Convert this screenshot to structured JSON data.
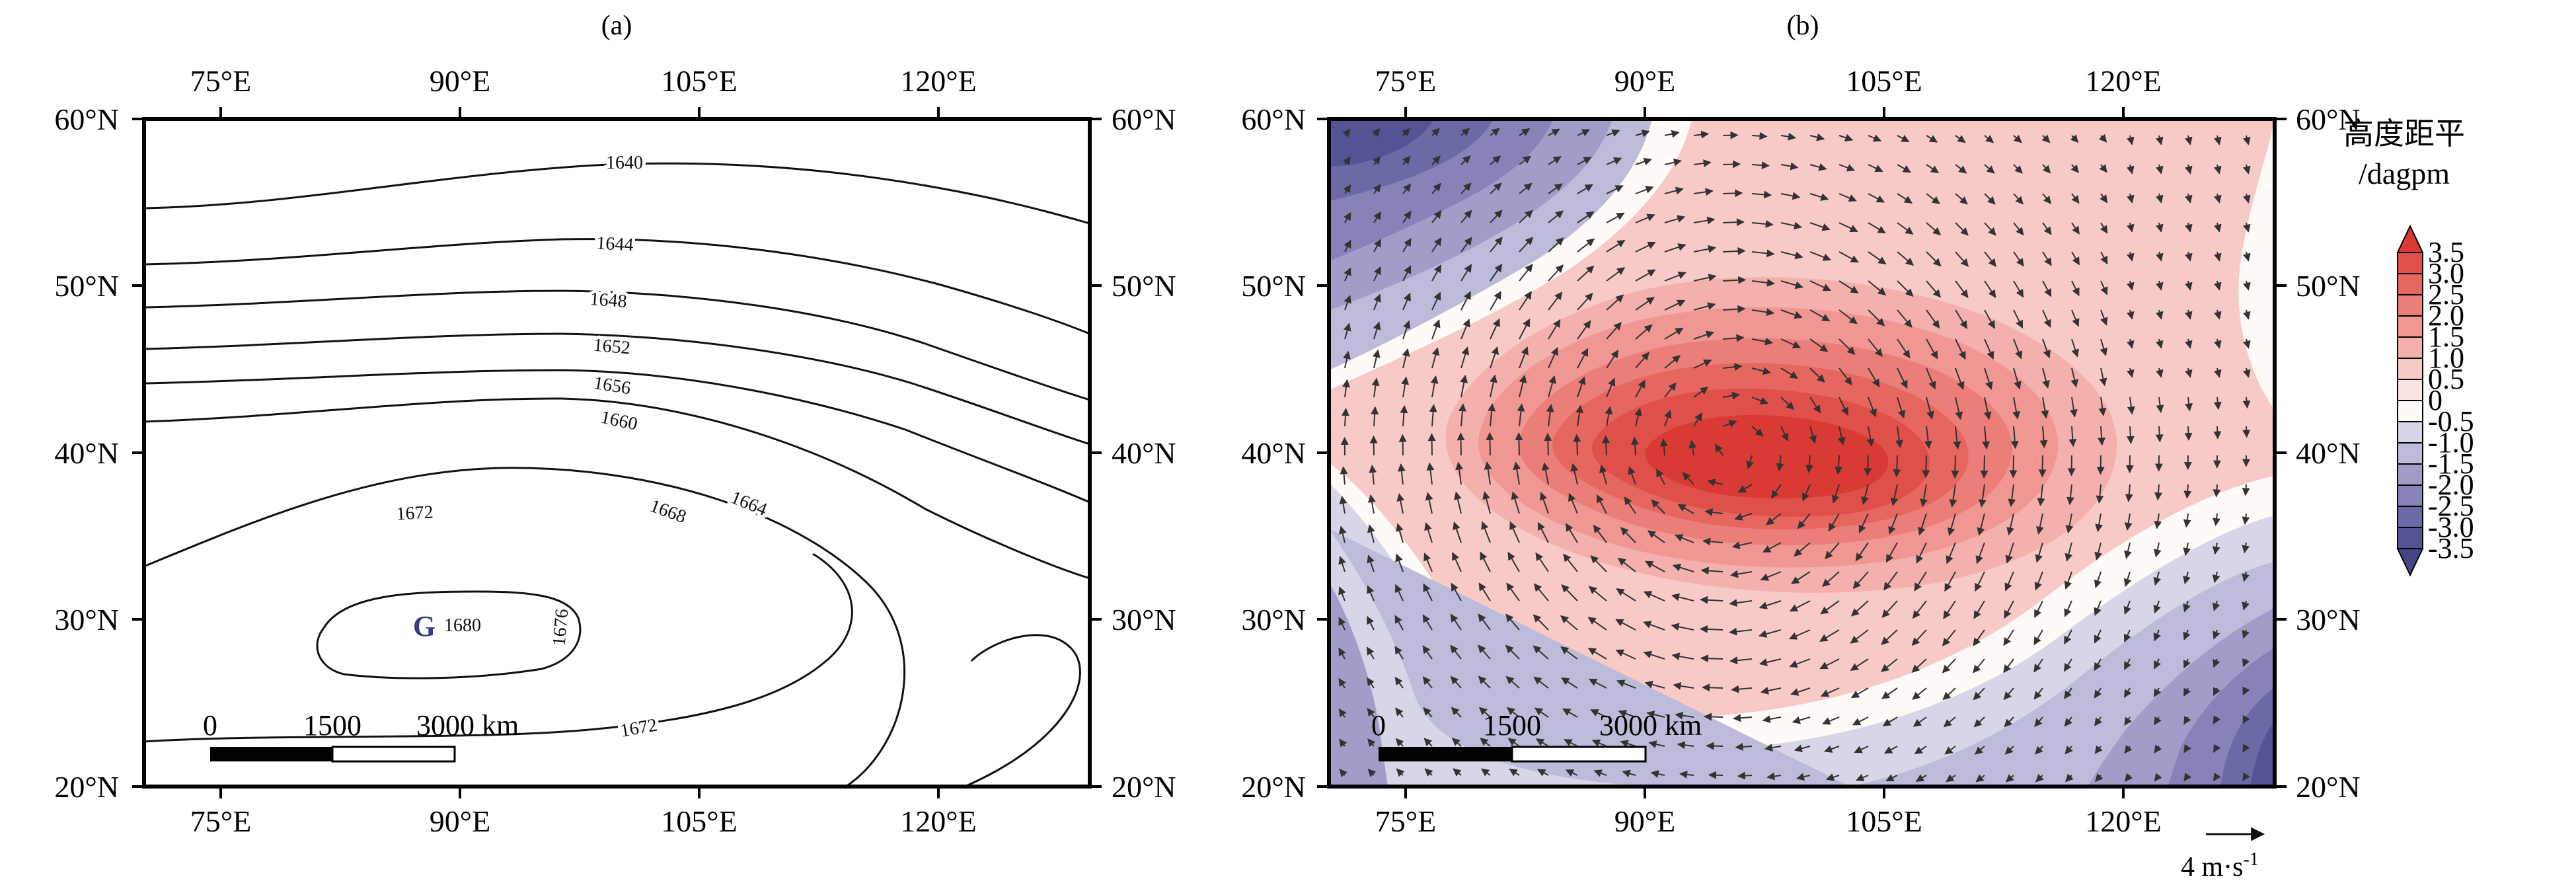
{
  "panels": {
    "a": {
      "label": "(a)",
      "lon_ticks": [
        "75°E",
        "90°E",
        "105°E",
        "120°E"
      ],
      "lat_ticks": [
        "60°N",
        "50°N",
        "40°N",
        "30°N",
        "20°N"
      ],
      "contour_labels": [
        "1640",
        "1644",
        "1648",
        "1652",
        "1656",
        "1660",
        "1664",
        "1668",
        "1672",
        "1672",
        "1676",
        "1680"
      ],
      "high_marker": "G",
      "scale_bar": {
        "labels": [
          "0",
          "1500",
          "3000 km"
        ]
      }
    },
    "b": {
      "label": "(b)",
      "lon_ticks": [
        "75°E",
        "90°E",
        "105°E",
        "120°E"
      ],
      "lat_ticks": [
        "60°N",
        "50°N",
        "40°N",
        "30°N",
        "20°N"
      ],
      "scale_bar": {
        "labels": [
          "0",
          "1500",
          "3000 km"
        ]
      },
      "ref_vector": {
        "label": "4 m·s",
        "exp": "-1"
      },
      "colorbar": {
        "title": "高度距平",
        "unit": "/dagpm",
        "tick_labels": [
          "3.5",
          "3.0",
          "2.5",
          "2.0",
          "1.5",
          "1.0",
          "0.5",
          "0",
          "-0.5",
          "-1.0",
          "-1.5",
          "-2.0",
          "-2.5",
          "-3.0",
          "-3.5"
        ],
        "colors_top_to_bottom": [
          "#d93a34",
          "#e0504a",
          "#e66660",
          "#eb7e79",
          "#f09793",
          "#f4b0ad",
          "#f8cac7",
          "#fbe4e2",
          "#fdfaf8",
          "#d7d6e8",
          "#bcbbd9",
          "#a09ec8",
          "#8583b7",
          "#6b69a6",
          "#545494",
          "#434585"
        ]
      }
    }
  }
}
